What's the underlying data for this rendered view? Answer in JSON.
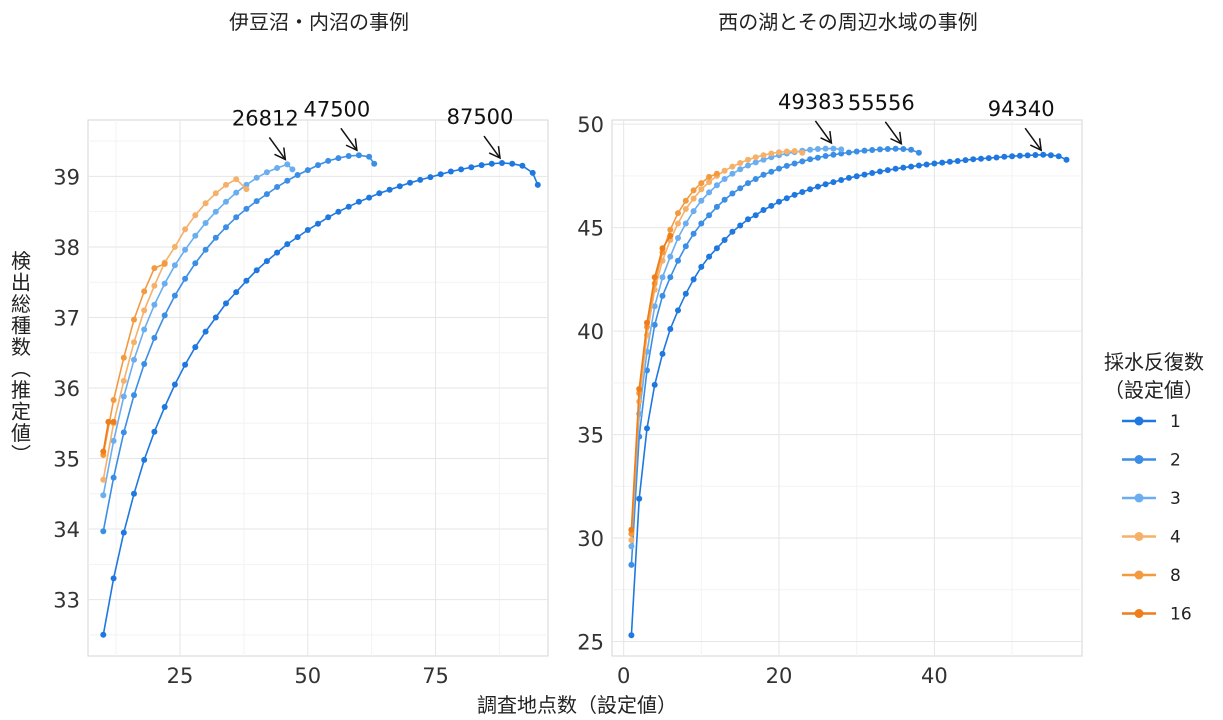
{
  "figure": {
    "x_axis_label": "調査地点数（設定値）",
    "y_axis_label": "検出総種数（推定値）",
    "legend": {
      "title_line1": "採水反復数",
      "title_line2": "（設定値）",
      "entries": [
        {
          "label": "1",
          "color": "#1f78e0"
        },
        {
          "label": "2",
          "color": "#3b8ee6"
        },
        {
          "label": "3",
          "color": "#6aaeef"
        },
        {
          "label": "4",
          "color": "#f5b06a"
        },
        {
          "label": "8",
          "color": "#f39a3e"
        },
        {
          "label": "16",
          "color": "#ee7d1a"
        }
      ]
    }
  },
  "chart_data": [
    {
      "type": "line",
      "title": "伊豆沼・内沼の事例",
      "xlabel": "調査地点数（設定値）",
      "ylabel": "検出総種数（推定値）",
      "xlim": [
        7,
        97
      ],
      "ylim": [
        32.2,
        39.8
      ],
      "x_ticks": [
        25,
        50,
        75
      ],
      "y_ticks": [
        33,
        34,
        35,
        36,
        37,
        38,
        39
      ],
      "grid": true,
      "legend": "right",
      "series": [
        {
          "name": "1",
          "color": "#1f78e0",
          "x": [
            10,
            12,
            14,
            16,
            18,
            20,
            22,
            24,
            26,
            28,
            30,
            32,
            34,
            36,
            38,
            40,
            42,
            44,
            46,
            48,
            50,
            52,
            54,
            56,
            58,
            60,
            62,
            64,
            66,
            68,
            70,
            72,
            74,
            76,
            78,
            80,
            82,
            84,
            86,
            88,
            90,
            92,
            94,
            95
          ],
          "y": [
            32.5,
            33.3,
            33.95,
            34.5,
            34.98,
            35.38,
            35.73,
            36.05,
            36.33,
            36.58,
            36.8,
            37.0,
            37.2,
            37.36,
            37.52,
            37.67,
            37.8,
            37.92,
            38.04,
            38.14,
            38.24,
            38.33,
            38.42,
            38.5,
            38.57,
            38.64,
            38.7,
            38.76,
            38.81,
            38.86,
            38.91,
            38.95,
            38.99,
            39.03,
            39.07,
            39.1,
            39.13,
            39.16,
            39.18,
            39.19,
            39.18,
            39.15,
            39.05,
            38.88
          ]
        },
        {
          "name": "2",
          "color": "#3b8ee6",
          "x": [
            10,
            12,
            14,
            16,
            18,
            20,
            22,
            24,
            26,
            28,
            30,
            32,
            34,
            36,
            38,
            40,
            42,
            44,
            46,
            48,
            50,
            52,
            54,
            56,
            58,
            60,
            62,
            63
          ],
          "y": [
            33.97,
            34.73,
            35.37,
            35.9,
            36.34,
            36.71,
            37.03,
            37.31,
            37.55,
            37.77,
            37.96,
            38.13,
            38.28,
            38.42,
            38.54,
            38.65,
            38.75,
            38.85,
            38.94,
            39.02,
            39.09,
            39.16,
            39.22,
            39.26,
            39.29,
            39.3,
            39.28,
            39.18
          ]
        },
        {
          "name": "3",
          "color": "#6aaeef",
          "x": [
            10,
            12,
            14,
            16,
            18,
            20,
            22,
            24,
            26,
            28,
            30,
            32,
            34,
            36,
            38,
            40,
            42,
            44,
            46,
            47
          ],
          "y": [
            34.48,
            35.25,
            35.88,
            36.4,
            36.83,
            37.18,
            37.48,
            37.74,
            37.96,
            38.16,
            38.34,
            38.5,
            38.64,
            38.77,
            38.88,
            38.98,
            39.06,
            39.12,
            39.17,
            39.1
          ]
        },
        {
          "name": "4",
          "color": "#f5b06a",
          "x": [
            10,
            12,
            14,
            16,
            18,
            20,
            22,
            24,
            26,
            28,
            30,
            32,
            34,
            36,
            38
          ],
          "y": [
            34.7,
            35.5,
            36.1,
            36.65,
            37.1,
            37.45,
            37.78,
            38.0,
            38.25,
            38.45,
            38.62,
            38.76,
            38.88,
            38.96,
            38.82
          ]
        },
        {
          "name": "8",
          "color": "#f39a3e",
          "x": [
            10,
            12,
            14,
            16,
            18,
            20,
            22
          ],
          "y": [
            35.05,
            35.83,
            36.43,
            36.97,
            37.37,
            37.7,
            37.76
          ]
        },
        {
          "name": "16",
          "color": "#ee7d1a",
          "x": [
            10,
            11,
            12
          ],
          "y": [
            35.1,
            35.52,
            35.52
          ]
        }
      ],
      "annotations": [
        {
          "text": "26812",
          "x": 46,
          "y": 39.17
        },
        {
          "text": "47500",
          "x": 60,
          "y": 39.3
        },
        {
          "text": "87500",
          "x": 88,
          "y": 39.19
        }
      ]
    },
    {
      "type": "line",
      "title": "西の湖とその周辺水域の事例",
      "xlabel": "調査地点数（設定値）",
      "ylabel": "検出総種数（推定値）",
      "xlim": [
        -1.5,
        59
      ],
      "ylim": [
        24.3,
        50.2
      ],
      "x_ticks": [
        0,
        20,
        40
      ],
      "y_ticks": [
        25,
        30,
        35,
        40,
        45,
        50
      ],
      "grid": true,
      "legend": "right",
      "series": [
        {
          "name": "1",
          "color": "#1f78e0",
          "x": [
            1,
            2,
            3,
            4,
            5,
            6,
            7,
            8,
            9,
            10,
            11,
            12,
            13,
            14,
            15,
            16,
            17,
            18,
            19,
            20,
            21,
            22,
            23,
            24,
            25,
            26,
            27,
            28,
            29,
            30,
            31,
            32,
            33,
            34,
            35,
            36,
            37,
            38,
            39,
            40,
            41,
            42,
            43,
            44,
            45,
            46,
            47,
            48,
            49,
            50,
            51,
            52,
            53,
            54,
            55,
            56,
            57
          ],
          "y": [
            25.3,
            31.9,
            35.3,
            37.4,
            38.9,
            40.1,
            41.0,
            41.8,
            42.5,
            43.1,
            43.6,
            44.0,
            44.4,
            44.8,
            45.1,
            45.4,
            45.6,
            45.85,
            46.05,
            46.25,
            46.42,
            46.58,
            46.72,
            46.85,
            46.98,
            47.1,
            47.2,
            47.3,
            47.4,
            47.48,
            47.56,
            47.64,
            47.71,
            47.78,
            47.84,
            47.9,
            47.95,
            48.0,
            48.05,
            48.1,
            48.14,
            48.18,
            48.22,
            48.26,
            48.3,
            48.33,
            48.36,
            48.39,
            48.42,
            48.45,
            48.47,
            48.49,
            48.51,
            48.52,
            48.5,
            48.45,
            48.28
          ]
        },
        {
          "name": "2",
          "color": "#3b8ee6",
          "x": [
            1,
            2,
            3,
            4,
            5,
            6,
            7,
            8,
            9,
            10,
            11,
            12,
            13,
            14,
            15,
            16,
            17,
            18,
            19,
            20,
            21,
            22,
            23,
            24,
            25,
            26,
            27,
            28,
            29,
            30,
            31,
            32,
            33,
            34,
            35,
            36,
            37,
            38
          ],
          "y": [
            28.7,
            34.9,
            38.1,
            40.3,
            41.7,
            42.6,
            43.4,
            44.1,
            44.7,
            45.2,
            45.6,
            46.0,
            46.35,
            46.65,
            46.9,
            47.15,
            47.35,
            47.55,
            47.7,
            47.85,
            47.98,
            48.1,
            48.2,
            48.3,
            48.38,
            48.46,
            48.52,
            48.58,
            48.63,
            48.68,
            48.72,
            48.75,
            48.78,
            48.8,
            48.81,
            48.8,
            48.76,
            48.62
          ]
        },
        {
          "name": "3",
          "color": "#6aaeef",
          "x": [
            1,
            2,
            3,
            4,
            5,
            6,
            7,
            8,
            9,
            10,
            11,
            12,
            13,
            14,
            15,
            16,
            17,
            18,
            19,
            20,
            21,
            22,
            23,
            24,
            25,
            26,
            27,
            28
          ],
          "y": [
            29.6,
            36.0,
            39.0,
            41.2,
            42.6,
            43.6,
            44.5,
            45.2,
            45.8,
            46.3,
            46.7,
            47.05,
            47.35,
            47.6,
            47.82,
            48.0,
            48.15,
            48.28,
            48.4,
            48.5,
            48.58,
            48.65,
            48.71,
            48.76,
            48.8,
            48.82,
            48.82,
            48.78
          ]
        },
        {
          "name": "4",
          "color": "#f5b06a",
          "x": [
            1,
            2,
            3,
            4,
            5,
            6,
            7,
            8,
            9,
            10,
            11,
            12,
            13,
            14,
            15,
            16,
            17,
            18,
            19,
            20,
            21,
            22,
            23
          ],
          "y": [
            29.9,
            36.6,
            39.8,
            42.0,
            43.4,
            44.4,
            45.2,
            45.9,
            46.4,
            46.85,
            47.2,
            47.5,
            47.75,
            47.95,
            48.12,
            48.28,
            48.4,
            48.5,
            48.58,
            48.64,
            48.68,
            48.7,
            48.62
          ]
        },
        {
          "name": "8",
          "color": "#f39a3e",
          "x": [
            1,
            2,
            3,
            4,
            5,
            6,
            7,
            8,
            9,
            10,
            11,
            12
          ],
          "y": [
            30.2,
            37.0,
            40.2,
            42.3,
            43.8,
            44.9,
            45.7,
            46.3,
            46.8,
            47.15,
            47.45,
            47.6
          ]
        },
        {
          "name": "16",
          "color": "#ee7d1a",
          "x": [
            1,
            2,
            3,
            4,
            5,
            6
          ],
          "y": [
            30.4,
            37.2,
            40.4,
            42.6,
            44.0,
            44.6
          ]
        }
      ],
      "annotations": [
        {
          "text": "49383",
          "x": 27,
          "y": 48.85
        },
        {
          "text": "55556",
          "x": 36,
          "y": 48.81
        },
        {
          "text": "94340",
          "x": 54,
          "y": 48.5
        }
      ]
    }
  ]
}
